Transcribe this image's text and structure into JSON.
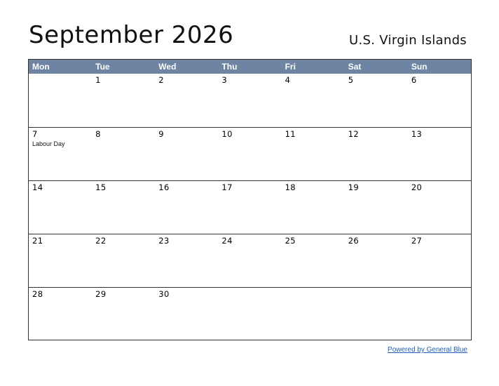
{
  "calendar": {
    "title": "September 2026",
    "region": "U.S. Virgin Islands",
    "weekdays": [
      "Mon",
      "Tue",
      "Wed",
      "Thu",
      "Fri",
      "Sat",
      "Sun"
    ],
    "weeks": [
      [
        {
          "day": ""
        },
        {
          "day": "1"
        },
        {
          "day": "2"
        },
        {
          "day": "3"
        },
        {
          "day": "4"
        },
        {
          "day": "5"
        },
        {
          "day": "6"
        }
      ],
      [
        {
          "day": "7",
          "holiday": "Labour Day"
        },
        {
          "day": "8"
        },
        {
          "day": "9"
        },
        {
          "day": "10"
        },
        {
          "day": "11"
        },
        {
          "day": "12"
        },
        {
          "day": "13"
        }
      ],
      [
        {
          "day": "14"
        },
        {
          "day": "15"
        },
        {
          "day": "16"
        },
        {
          "day": "17"
        },
        {
          "day": "18"
        },
        {
          "day": "19"
        },
        {
          "day": "20"
        }
      ],
      [
        {
          "day": "21"
        },
        {
          "day": "22"
        },
        {
          "day": "23"
        },
        {
          "day": "24"
        },
        {
          "day": "25"
        },
        {
          "day": "26"
        },
        {
          "day": "27"
        }
      ],
      [
        {
          "day": "28"
        },
        {
          "day": "29"
        },
        {
          "day": "30"
        },
        {
          "day": ""
        },
        {
          "day": ""
        },
        {
          "day": ""
        },
        {
          "day": ""
        }
      ]
    ]
  },
  "footer": {
    "link_text": "Powered by General Blue"
  },
  "colors": {
    "header_bg": "#6e84a3",
    "link": "#1f5fbf"
  }
}
